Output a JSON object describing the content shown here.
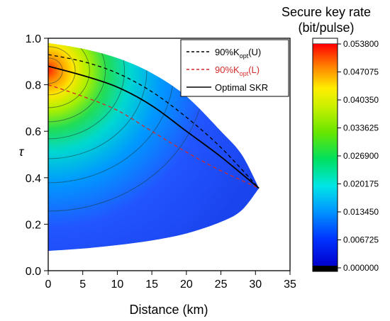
{
  "chart_data": {
    "type": "heatmap",
    "xlabel": "Distance (km)",
    "ylabel": "τ",
    "xlim": [
      0,
      35
    ],
    "ylim": [
      0.0,
      1.0
    ],
    "x_ticks": [
      "0",
      "5",
      "10",
      "15",
      "20",
      "25",
      "30",
      "35"
    ],
    "y_ticks": [
      "0.0",
      "0.2",
      "0.4",
      "0.6",
      "0.8",
      "1.0"
    ],
    "colorbar": {
      "title_line1": "Secure key rate",
      "title_line2": "(bit/pulse)",
      "min": 0.0,
      "max": 0.0538,
      "tick_labels": [
        "0.053800",
        "0.047075",
        "0.040350",
        "0.033625",
        "0.026900",
        "0.020175",
        "0.013450",
        "0.006725",
        "0.000000"
      ]
    },
    "region": {
      "upper_boundary": [
        [
          0,
          0.98
        ],
        [
          5,
          0.955
        ],
        [
          10,
          0.915
        ],
        [
          15,
          0.85
        ],
        [
          20,
          0.75
        ],
        [
          25,
          0.6
        ],
        [
          28,
          0.5
        ],
        [
          30.5,
          0.355
        ]
      ],
      "lower_boundary": [
        [
          0,
          0.085
        ],
        [
          5,
          0.095
        ],
        [
          10,
          0.11
        ],
        [
          15,
          0.13
        ],
        [
          20,
          0.16
        ],
        [
          25,
          0.21
        ],
        [
          28,
          0.26
        ],
        [
          30.5,
          0.355
        ]
      ],
      "peak": {
        "x": 0,
        "y": 0.86,
        "value": 0.0538
      }
    },
    "legend": {
      "position": "top-right",
      "entries": [
        {
          "label": "90%K",
          "sub": "opt",
          "suffix": "(U)",
          "color": "#000000",
          "dash": true
        },
        {
          "label": "90%K",
          "sub": "opt",
          "suffix": "(L)",
          "color": "#d42a2a",
          "dash": true
        },
        {
          "label": "Optimal SKR",
          "sub": "",
          "suffix": "",
          "color": "#000000",
          "dash": false
        }
      ]
    },
    "series": [
      {
        "name": "90%Kopt(U)",
        "x": [
          0,
          5,
          10,
          15,
          20,
          25,
          30.5
        ],
        "y": [
          0.93,
          0.9,
          0.85,
          0.77,
          0.66,
          0.53,
          0.355
        ]
      },
      {
        "name": "90%Kopt(L)",
        "x": [
          0,
          5,
          10,
          15,
          20,
          25,
          30.5
        ],
        "y": [
          0.8,
          0.75,
          0.69,
          0.6,
          0.51,
          0.43,
          0.355
        ]
      },
      {
        "name": "Optimal SKR",
        "x": [
          0,
          5,
          10,
          15,
          20,
          25,
          30.5
        ],
        "y": [
          0.88,
          0.84,
          0.79,
          0.71,
          0.6,
          0.49,
          0.355
        ]
      }
    ]
  }
}
